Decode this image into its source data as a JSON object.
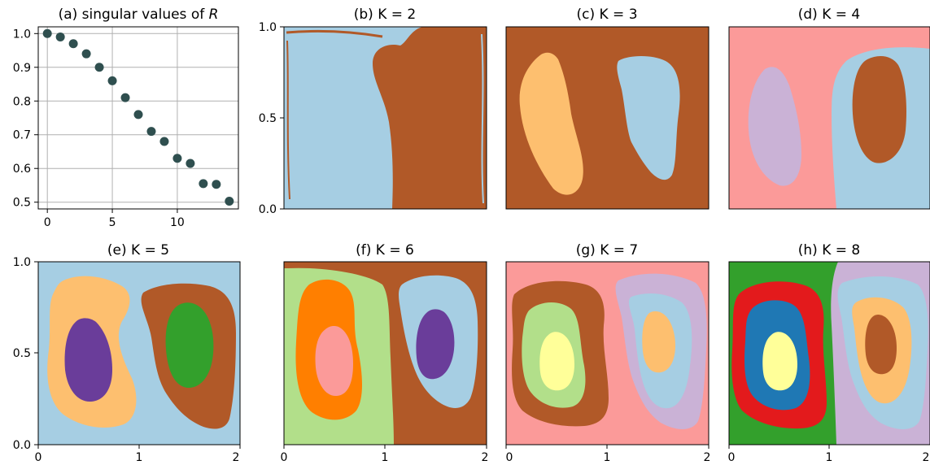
{
  "colors": {
    "light_blue": "#a6cee3",
    "brown": "#b15928",
    "peach": "#fdbf6f",
    "pink": "#fb9a99",
    "lavender": "#cab2d6",
    "green": "#33a02c",
    "purple": "#6a3d9a",
    "light_green": "#b2df8a",
    "orange": "#ff7f00",
    "yellow": "#ffff99",
    "red": "#e31a1c",
    "blue": "#1f78b4",
    "dot": "#2f4f4f"
  },
  "chart_data": [
    {
      "type": "scatter",
      "title": "(a) singular values of R",
      "title_prefix": "(a) singular values of ",
      "title_italic": "R",
      "x": [
        0,
        1,
        2,
        3,
        4,
        5,
        6,
        7,
        8,
        9,
        10,
        11,
        12,
        13,
        14
      ],
      "y": [
        1.0,
        0.99,
        0.97,
        0.94,
        0.9,
        0.86,
        0.81,
        0.76,
        0.71,
        0.68,
        0.63,
        0.615,
        0.555,
        0.553,
        0.503
      ],
      "xlim": [
        -0.7,
        14.7
      ],
      "ylim": [
        0.48,
        1.02
      ],
      "xticks": [
        "0",
        "5",
        "10"
      ],
      "yticks": [
        "0.5",
        "0.6",
        "0.7",
        "0.8",
        "0.9",
        "1.0"
      ],
      "grid": true
    },
    {
      "type": "heatmap",
      "title": "(b) K = 2",
      "xlim": [
        0,
        2
      ],
      "ylim": [
        0,
        1
      ],
      "yticks": [
        "0.0",
        "0.5",
        "1.0"
      ]
    },
    {
      "type": "heatmap",
      "title": "(c) K = 3",
      "xlim": [
        0,
        2
      ],
      "ylim": [
        0,
        1
      ]
    },
    {
      "type": "heatmap",
      "title": "(d) K = 4",
      "xlim": [
        0,
        2
      ],
      "ylim": [
        0,
        1
      ]
    },
    {
      "type": "heatmap",
      "title": "(e) K = 5",
      "xlim": [
        0,
        2
      ],
      "ylim": [
        0,
        1
      ],
      "xticks": [
        "0",
        "1",
        "2"
      ],
      "yticks": [
        "0.0",
        "0.5",
        "1.0"
      ]
    },
    {
      "type": "heatmap",
      "title": "(f) K = 6",
      "xlim": [
        0,
        2
      ],
      "ylim": [
        0,
        1
      ],
      "xticks": [
        "0",
        "1",
        "2"
      ]
    },
    {
      "type": "heatmap",
      "title": "(g) K = 7",
      "xlim": [
        0,
        2
      ],
      "ylim": [
        0,
        1
      ],
      "xticks": [
        "0",
        "1",
        "2"
      ]
    },
    {
      "type": "heatmap",
      "title": "(h) K = 8",
      "xlim": [
        0,
        2
      ],
      "ylim": [
        0,
        1
      ],
      "xticks": [
        "0",
        "1",
        "2"
      ]
    }
  ]
}
